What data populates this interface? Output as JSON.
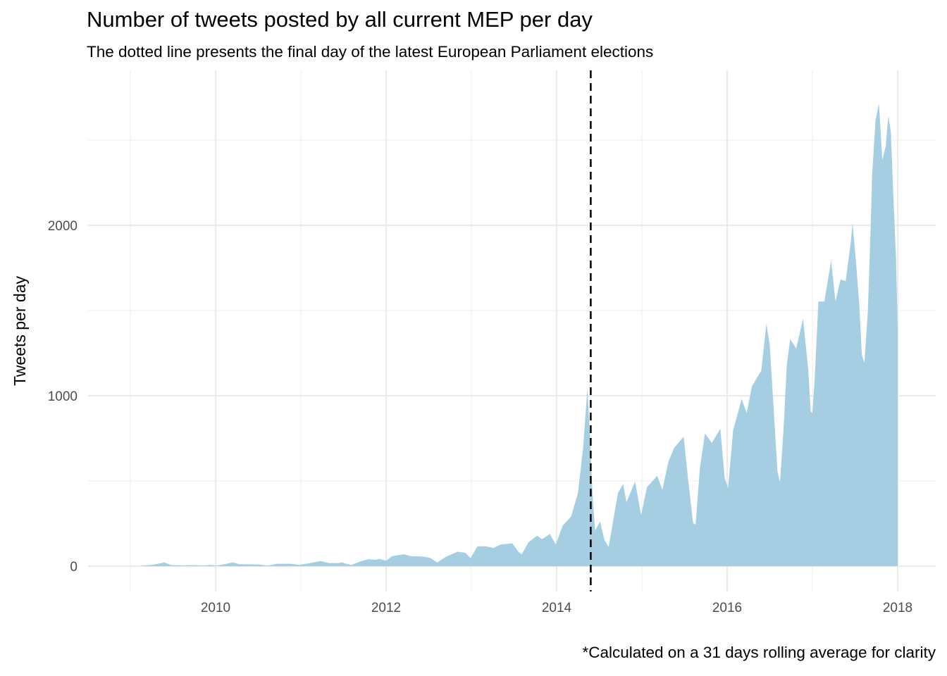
{
  "chart_data": {
    "type": "area",
    "title": "Number of tweets posted by all current MEP per day",
    "subtitle": "The dotted line presents the final day of the latest European Parliament elections",
    "caption": "*Calculated on a 31 days rolling average for clarity",
    "xlabel": "",
    "ylabel": "Tweets per day",
    "xlim": [
      2008.6,
      2018.4
    ],
    "ylim": [
      -120,
      2900
    ],
    "x_ticks": [
      2010,
      2012,
      2014,
      2016,
      2018
    ],
    "x_tick_labels": [
      "2010",
      "2012",
      "2014",
      "2016",
      "2018"
    ],
    "y_ticks": [
      0,
      1000,
      2000
    ],
    "y_tick_labels": [
      "0",
      "1000",
      "2000"
    ],
    "grid": true,
    "fill_color": "#a6cee3",
    "reference_line": {
      "x": 2014.4,
      "style": "dashed",
      "color": "#000000"
    },
    "series": [
      {
        "x": [
          2009.12,
          2009.26,
          2009.4,
          2009.48,
          2009.62,
          2009.73,
          2009.87,
          2009.93,
          2010.01,
          2010.09,
          2010.2,
          2010.28,
          2010.5,
          2010.61,
          2010.72,
          2010.88,
          2010.98,
          2011.11,
          2011.23,
          2011.33,
          2011.44,
          2011.48,
          2011.59,
          2011.71,
          2011.79,
          2011.88,
          2011.92,
          2012.0,
          2012.07,
          2012.21,
          2012.29,
          2012.43,
          2012.51,
          2012.6,
          2012.7,
          2012.84,
          2012.93,
          2012.99,
          2013.07,
          2013.17,
          2013.26,
          2013.34,
          2013.48,
          2013.55,
          2013.59,
          2013.67,
          2013.77,
          2013.83,
          2013.92,
          2013.99,
          2014.07,
          2014.17,
          2014.25,
          2014.31,
          2014.36,
          2014.39,
          2014.42,
          2014.45,
          2014.51,
          2014.56,
          2014.61,
          2014.72,
          2014.78,
          2014.82,
          2014.92,
          2014.99,
          2015.06,
          2015.18,
          2015.24,
          2015.31,
          2015.38,
          2015.49,
          2015.54,
          2015.6,
          2015.63,
          2015.68,
          2015.74,
          2015.82,
          2015.92,
          2015.97,
          2016.01,
          2016.07,
          2016.17,
          2016.23,
          2016.29,
          2016.4,
          2016.46,
          2016.5,
          2016.55,
          2016.59,
          2016.62,
          2016.66,
          2016.7,
          2016.74,
          2016.81,
          2016.89,
          2016.95,
          2016.98,
          2017.0,
          2017.03,
          2017.07,
          2017.14,
          2017.22,
          2017.27,
          2017.33,
          2017.39,
          2017.45,
          2017.47,
          2017.51,
          2017.55,
          2017.58,
          2017.61,
          2017.65,
          2017.68,
          2017.7,
          2017.74,
          2017.78,
          2017.82,
          2017.86,
          2017.89,
          2017.92,
          2017.95,
          2017.98,
          2018.0
        ],
        "y": [
          1,
          8,
          22,
          6,
          4,
          6,
          3,
          7,
          3,
          10,
          22,
          11,
          10,
          3,
          14,
          14,
          7,
          18,
          30,
          18,
          18,
          22,
          6,
          30,
          41,
          37,
          43,
          32,
          59,
          70,
          59,
          56,
          50,
          22,
          55,
          85,
          78,
          47,
          116,
          116,
          106,
          127,
          134,
          85,
          69,
          140,
          179,
          158,
          189,
          127,
          237,
          292,
          430,
          691,
          1042,
          774,
          430,
          209,
          262,
          154,
          113,
          430,
          482,
          375,
          498,
          300,
          465,
          530,
          447,
          612,
          695,
          760,
          520,
          253,
          244,
          575,
          779,
          723,
          806,
          520,
          456,
          797,
          981,
          898,
          1055,
          1148,
          1424,
          1295,
          889,
          557,
          493,
          797,
          1184,
          1332,
          1277,
          1452,
          1157,
          908,
          898,
          1129,
          1553,
          1553,
          1793,
          1553,
          1683,
          1673,
          1904,
          2015,
          1793,
          1535,
          1240,
          1194,
          1498,
          1941,
          2292,
          2614,
          2716,
          2384,
          2467,
          2642,
          2550,
          2162,
          1812,
          1397
        ]
      }
    ]
  }
}
